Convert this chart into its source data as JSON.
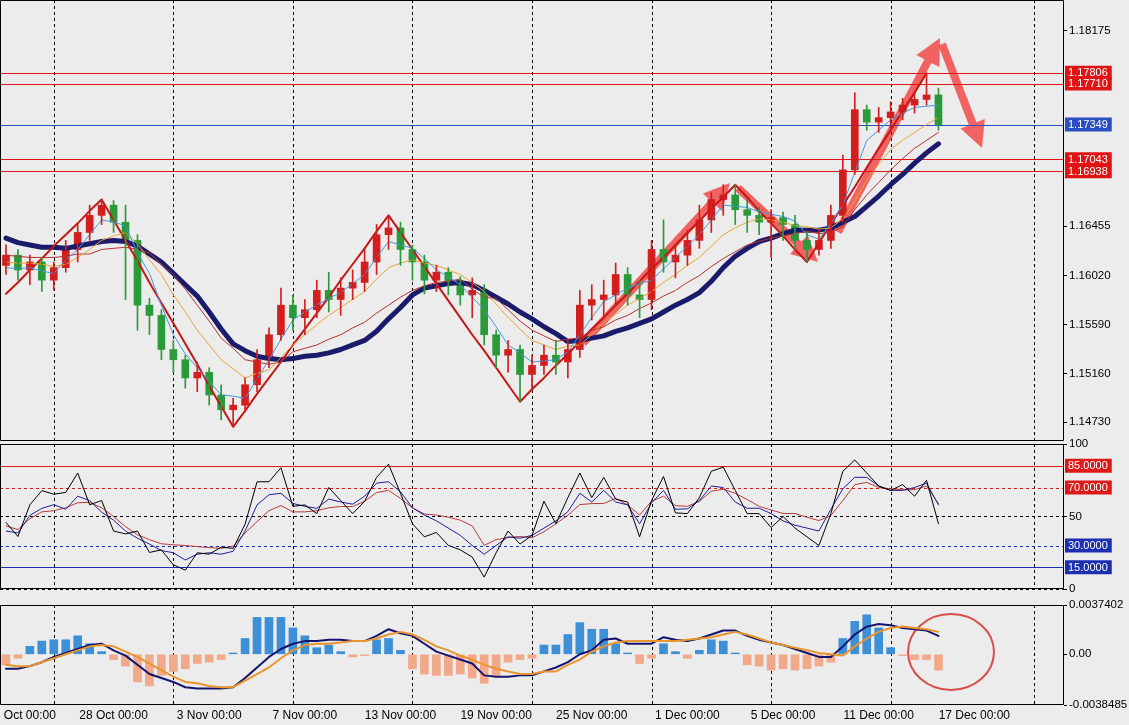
{
  "chart_data": [
    {
      "type": "candlestick",
      "ylim": [
        1.14565,
        1.18445
      ],
      "tick_labels": "y",
      "grid": "x",
      "yticks": [
        {
          "value": 1.1473,
          "label": "1.14730"
        },
        {
          "value": 1.1516,
          "label": "1.15160"
        },
        {
          "value": 1.1559,
          "label": "1.15590"
        },
        {
          "value": 1.1602,
          "label": "1.16020"
        },
        1.16455,
        1.18175
      ],
      "categories": [
        null,
        null,
        null,
        null,
        null,
        null,
        null,
        null,
        null,
        null,
        null,
        null,
        null,
        null,
        null,
        null,
        null,
        null,
        null,
        null,
        null,
        null,
        null,
        null,
        null,
        null,
        null,
        null,
        null,
        null,
        null,
        null,
        null,
        null,
        null,
        null,
        null,
        null,
        null,
        null,
        null,
        null,
        null,
        null,
        null,
        null,
        null,
        null,
        null,
        null,
        null,
        null,
        null,
        null,
        null,
        null,
        null,
        null,
        null,
        null,
        null,
        null,
        null,
        null,
        null,
        null,
        null,
        null,
        null,
        null,
        null,
        null,
        null,
        null,
        null,
        null,
        null,
        null,
        null,
        null,
        null,
        null,
        null,
        null,
        null,
        null,
        null,
        null,
        null
      ],
      "ohlc": [
        [
          1.1611,
          1.1629,
          1.1603,
          1.162
        ],
        [
          1.162,
          1.1625,
          1.1598,
          1.1607
        ],
        [
          1.1607,
          1.162,
          1.1594,
          1.1614
        ],
        [
          1.1614,
          1.1618,
          1.1588,
          1.1598
        ],
        [
          1.1598,
          1.1614,
          1.1589,
          1.1609
        ],
        [
          1.1609,
          1.1633,
          1.1605,
          1.1625
        ],
        [
          1.1625,
          1.1647,
          1.1614,
          1.164
        ],
        [
          1.164,
          1.1664,
          1.1633,
          1.1655
        ],
        [
          1.1655,
          1.1669,
          1.1647,
          1.1664
        ],
        [
          1.1664,
          1.1668,
          1.164,
          1.1649
        ],
        [
          1.1649,
          1.1664,
          1.1581,
          1.1633
        ],
        [
          1.1633,
          1.1638,
          1.1554,
          1.1576
        ],
        [
          1.1576,
          1.1582,
          1.155,
          1.1567
        ],
        [
          1.1567,
          1.1572,
          1.1528,
          1.1537
        ],
        [
          1.1537,
          1.1545,
          1.1517,
          1.1528
        ],
        [
          1.1528,
          1.1532,
          1.1503,
          1.1512
        ],
        [
          1.1512,
          1.1526,
          1.15,
          1.1517
        ],
        [
          1.1517,
          1.1521,
          1.1488,
          1.1497
        ],
        [
          1.1497,
          1.1506,
          1.1475,
          1.1484
        ],
        [
          1.1484,
          1.1494,
          1.1469,
          1.1488
        ],
        [
          1.1488,
          1.1512,
          1.1482,
          1.1506
        ],
        [
          1.1506,
          1.1537,
          1.15,
          1.1528
        ],
        [
          1.1528,
          1.1556,
          1.1521,
          1.155
        ],
        [
          1.155,
          1.1591,
          1.1545,
          1.1576
        ],
        [
          1.1576,
          1.1585,
          1.1554,
          1.1565
        ],
        [
          1.1565,
          1.1581,
          1.155,
          1.1572
        ],
        [
          1.1572,
          1.1598,
          1.1565,
          1.1589
        ],
        [
          1.1589,
          1.1605,
          1.157,
          1.1581
        ],
        [
          1.1581,
          1.16,
          1.1567,
          1.1591
        ],
        [
          1.1591,
          1.1607,
          1.1581,
          1.1596
        ],
        [
          1.1596,
          1.1625,
          1.1588,
          1.1614
        ],
        [
          1.1614,
          1.1647,
          1.1603,
          1.1638
        ],
        [
          1.1638,
          1.1655,
          1.1625,
          1.1644
        ],
        [
          1.1644,
          1.1649,
          1.1611,
          1.1625
        ],
        [
          1.1625,
          1.1629,
          1.1598,
          1.1614
        ],
        [
          1.1614,
          1.162,
          1.1586,
          1.1598
        ],
        [
          1.1598,
          1.1611,
          1.1588,
          1.1605
        ],
        [
          1.1605,
          1.1609,
          1.1585,
          1.1594
        ],
        [
          1.1594,
          1.1601,
          1.1576,
          1.1585
        ],
        [
          1.1585,
          1.16,
          1.1565,
          1.1589
        ],
        [
          1.1589,
          1.1594,
          1.1541,
          1.155
        ],
        [
          1.155,
          1.1554,
          1.1521,
          1.1532
        ],
        [
          1.1532,
          1.1545,
          1.1517,
          1.1537
        ],
        [
          1.1537,
          1.1541,
          1.1491,
          1.1515
        ],
        [
          1.1515,
          1.1532,
          1.1501,
          1.1523
        ],
        [
          1.1523,
          1.1541,
          1.1515,
          1.1532
        ],
        [
          1.1532,
          1.1545,
          1.1515,
          1.1526
        ],
        [
          1.1526,
          1.1545,
          1.1512,
          1.1537
        ],
        [
          1.1537,
          1.1589,
          1.153,
          1.1576
        ],
        [
          1.1576,
          1.1594,
          1.1563,
          1.1581
        ],
        [
          1.1581,
          1.1598,
          1.1567,
          1.1585
        ],
        [
          1.1585,
          1.1613,
          1.1576,
          1.1603
        ],
        [
          1.1603,
          1.1609,
          1.1576,
          1.1585
        ],
        [
          1.1585,
          1.1598,
          1.1565,
          1.1581
        ],
        [
          1.1581,
          1.1633,
          1.1572,
          1.1625
        ],
        [
          1.1625,
          1.1651,
          1.1605,
          1.1614
        ],
        [
          1.1614,
          1.1629,
          1.16,
          1.162
        ],
        [
          1.162,
          1.1642,
          1.1611,
          1.1633
        ],
        [
          1.1633,
          1.1664,
          1.1626,
          1.1651
        ],
        [
          1.1651,
          1.1675,
          1.164,
          1.1669
        ],
        [
          1.1669,
          1.1682,
          1.1655,
          1.1673
        ],
        [
          1.1673,
          1.1682,
          1.1647,
          1.166
        ],
        [
          1.166,
          1.1669,
          1.164,
          1.1655
        ],
        [
          1.1655,
          1.1662,
          1.1638,
          1.1649
        ],
        [
          1.1649,
          1.166,
          1.1618,
          1.1653
        ],
        [
          1.1653,
          1.1658,
          1.1633,
          1.1647
        ],
        [
          1.1647,
          1.1655,
          1.1625,
          1.1633
        ],
        [
          1.1633,
          1.164,
          1.1614,
          1.1625
        ],
        [
          1.1625,
          1.1642,
          1.162,
          1.1633
        ],
        [
          1.1633,
          1.1664,
          1.1626,
          1.1655
        ],
        [
          1.1655,
          1.1708,
          1.1649,
          1.1695
        ],
        [
          1.1695,
          1.1763,
          1.1691,
          1.1748
        ],
        [
          1.1748,
          1.1752,
          1.173,
          1.1737
        ],
        [
          1.1737,
          1.175,
          1.1728,
          1.1741
        ],
        [
          1.1741,
          1.1755,
          1.1732,
          1.1746
        ],
        [
          1.1746,
          1.1758,
          1.1739,
          1.1752
        ],
        [
          1.1752,
          1.1764,
          1.1745,
          1.1757
        ],
        [
          1.1757,
          1.178,
          1.1752,
          1.1761
        ],
        [
          1.1761,
          1.1767,
          1.173,
          1.17349
        ],
        null,
        null,
        null,
        null,
        null,
        null,
        null,
        null,
        null,
        null
      ],
      "colors": [
        "#d21e1e",
        "#2a9a3a",
        "#d21e1e",
        "#2a9a3a",
        "#d21e1e",
        "#d21e1e",
        "#d21e1e",
        "#d21e1e",
        "#d21e1e",
        "#2a9a3a",
        "#2a9a3a",
        "#2a9a3a",
        "#2a9a3a",
        "#2a9a3a",
        "#2a9a3a",
        "#2a9a3a",
        "#d21e1e",
        "#2a9a3a",
        "#2a9a3a",
        "#d21e1e",
        "#d21e1e",
        "#d21e1e",
        "#d21e1e",
        "#d21e1e",
        "#2a9a3a",
        "#d21e1e",
        "#d21e1e",
        "#2a9a3a",
        "#d21e1e",
        "#d21e1e",
        "#d21e1e",
        "#d21e1e",
        "#d21e1e",
        "#2a9a3a",
        "#2a9a3a",
        "#2a9a3a",
        "#d21e1e",
        "#2a9a3a",
        "#2a9a3a",
        "#d21e1e",
        "#2a9a3a",
        "#2a9a3a",
        "#d21e1e",
        "#2a9a3a",
        "#d21e1e",
        "#d21e1e",
        "#2a9a3a",
        "#d21e1e",
        "#d21e1e",
        "#d21e1e",
        "#d21e1e",
        "#d21e1e",
        "#2a9a3a",
        "#2a9a3a",
        "#d21e1e",
        "#2a9a3a",
        "#d21e1e",
        "#d21e1e",
        "#d21e1e",
        "#d21e1e",
        "#d21e1e",
        "#2a9a3a",
        "#2a9a3a",
        "#2a9a3a",
        "#d21e1e",
        "#2a9a3a",
        "#2a9a3a",
        "#2a9a3a",
        "#d21e1e",
        "#d21e1e",
        "#d21e1e",
        "#d21e1e",
        "#2a9a3a",
        "#d21e1e",
        "#d21e1e",
        "#d21e1e",
        "#d21e1e",
        "#d21e1e",
        "#2a9a3a",
        null,
        null,
        null,
        null,
        null,
        null,
        null,
        null,
        null,
        null
      ],
      "series": [
        {
          "type": "line",
          "color": "#3f9be0",
          "values": [
            1.1609,
            1.1608,
            1.1609,
            1.1606,
            1.1604,
            1.1616,
            1.1625,
            1.1638,
            1.1651,
            1.1649,
            1.1646,
            1.1622,
            1.1604,
            1.1576,
            1.155,
            1.1533,
            1.1521,
            1.1509,
            1.1497,
            1.1496,
            1.1494,
            1.1511,
            1.1528,
            1.1546,
            1.1563,
            1.157,
            1.1576,
            1.1582,
            1.1587,
            1.1595,
            1.1603,
            1.1618,
            1.1632,
            1.1629,
            1.1626,
            1.1617,
            1.1607,
            1.1601,
            1.1594,
            1.1583,
            1.1572,
            1.1557,
            1.1541,
            1.1534,
            1.1526,
            1.1527,
            1.1528,
            1.1535,
            1.155,
            1.1565,
            1.1579,
            1.1585,
            1.1591,
            1.1595,
            1.1598,
            1.1608,
            1.1618,
            1.1628,
            1.1638,
            1.1651,
            1.1664,
            1.1663,
            1.1662,
            1.1658,
            1.1656,
            1.1654,
            1.165,
            1.1638,
            1.1634,
            1.1648,
            1.1664,
            1.1693,
            1.1721,
            1.173,
            1.1739,
            1.1745,
            1.175,
            1.1751,
            1.1752,
            null,
            null,
            null,
            null,
            null,
            null,
            null,
            null,
            null,
            null
          ]
        },
        {
          "type": "line",
          "color": "#eda533",
          "values": [
            1.1614,
            1.1613,
            1.1613,
            1.1612,
            1.161,
            1.1612,
            1.1618,
            1.1625,
            1.1633,
            1.1637,
            1.164,
            1.163,
            1.1616,
            1.1603,
            1.1585,
            1.157,
            1.1554,
            1.1541,
            1.1528,
            1.152,
            1.1512,
            1.1516,
            1.1519,
            1.153,
            1.1541,
            1.155,
            1.1559,
            1.1567,
            1.1574,
            1.1581,
            1.1588,
            1.1599,
            1.1609,
            1.1613,
            1.1616,
            1.1613,
            1.1611,
            1.1607,
            1.1603,
            1.1596,
            1.1588,
            1.1577,
            1.1565,
            1.1555,
            1.1545,
            1.1541,
            1.1537,
            1.154,
            1.1541,
            1.155,
            1.1561,
            1.1568,
            1.1576,
            1.1582,
            1.1588,
            1.1596,
            1.1603,
            1.1611,
            1.1618,
            1.1628,
            1.1638,
            1.1644,
            1.1649,
            1.1652,
            1.1651,
            1.1649,
            1.1646,
            1.1645,
            1.1643,
            1.1644,
            1.1652,
            1.1668,
            1.1686,
            1.17,
            1.1713,
            1.1721,
            1.1728,
            1.1735,
            1.1741,
            null,
            null,
            null,
            null,
            null,
            null,
            null,
            null,
            null,
            null
          ]
        },
        {
          "type": "line",
          "color": "#b5322f",
          "values": [
            1.162,
            1.1619,
            1.1618,
            1.1618,
            1.1618,
            1.1619,
            1.1621,
            1.1621,
            1.1625,
            1.1626,
            1.1627,
            1.1625,
            1.1622,
            1.1612,
            1.1603,
            1.159,
            1.1576,
            1.1562,
            1.1547,
            1.1538,
            1.1528,
            1.1526,
            1.1524,
            1.1526,
            1.1535,
            1.1538,
            1.1541,
            1.1546,
            1.155,
            1.1556,
            1.1561,
            1.1569,
            1.1576,
            1.1583,
            1.1589,
            1.1593,
            1.1596,
            1.1597,
            1.1599,
            1.159,
            1.1583,
            1.1582,
            1.1572,
            1.1562,
            1.1554,
            1.1549,
            1.1544,
            1.1546,
            1.1547,
            1.1554,
            1.1557,
            1.1563,
            1.1567,
            1.1573,
            1.1578,
            1.1584,
            1.1589,
            1.1596,
            1.1602,
            1.161,
            1.1617,
            1.1623,
            1.1629,
            1.1632,
            1.1635,
            1.1637,
            1.1639,
            1.1641,
            1.1639,
            1.164,
            1.1645,
            1.166,
            1.1673,
            1.1684,
            1.1695,
            1.1705,
            1.1714,
            1.1721,
            1.1728,
            null,
            null,
            null,
            null,
            null,
            null,
            null,
            null,
            null,
            null
          ]
        },
        {
          "type": "line",
          "color": "#1b1b6b",
          "values": [
            1.1635,
            1.1631,
            1.1629,
            1.1627,
            1.1627,
            1.1626,
            1.1628,
            1.163,
            1.1632,
            1.1633,
            1.1632,
            1.1628,
            1.1621,
            1.1614,
            1.1604,
            1.1594,
            1.1584,
            1.157,
            1.1555,
            1.1542,
            1.1536,
            1.1531,
            1.1529,
            1.1528,
            1.1529,
            1.1531,
            1.1532,
            1.1534,
            1.1537,
            1.1541,
            1.1545,
            1.1553,
            1.1564,
            1.1574,
            1.1585,
            1.1591,
            1.1593,
            1.1595,
            1.1596,
            1.1594,
            1.1589,
            1.1583,
            1.1577,
            1.157,
            1.1564,
            1.1557,
            1.1551,
            1.1544,
            1.1545,
            1.1547,
            1.1549,
            1.1553,
            1.1556,
            1.156,
            1.1564,
            1.157,
            1.1576,
            1.1581,
            1.1587,
            1.1597,
            1.1609,
            1.1619,
            1.1626,
            1.1632,
            1.1635,
            1.1639,
            1.1642,
            1.1642,
            1.1642,
            1.1644,
            1.1649,
            1.1654,
            1.1663,
            1.1672,
            1.1682,
            1.1691,
            1.1701,
            1.171,
            1.1718,
            null,
            null,
            null,
            null,
            null,
            null,
            null,
            null,
            null,
            null
          ]
        },
        {
          "type": "line",
          "color": "#c41818",
          "values": [
            1.1586,
            1.1596,
            1.1607,
            1.1617,
            1.1628,
            1.1638,
            1.1648,
            1.1659,
            1.1669,
            1.1651,
            1.1633,
            1.1615,
            1.1596,
            1.1578,
            1.156,
            1.1542,
            1.1524,
            1.1505,
            1.1487,
            1.1469,
            1.1483,
            1.1498,
            1.1512,
            1.1526,
            1.1541,
            1.1555,
            1.1569,
            1.1583,
            1.1598,
            1.1612,
            1.1626,
            1.1641,
            1.1655,
            1.164,
            1.1625,
            1.161,
            1.1595,
            1.158,
            1.1565,
            1.155,
            1.1536,
            1.1521,
            1.1506,
            1.1491,
            1.1502,
            1.1512,
            1.1523,
            1.1533,
            1.1544,
            1.1555,
            1.1565,
            1.1576,
            1.1586,
            1.1597,
            1.1608,
            1.1618,
            1.1629,
            1.164,
            1.165,
            1.1661,
            1.1671,
            1.1682,
            1.1671,
            1.1659,
            1.1648,
            1.1637,
            1.1625,
            1.1614,
            1.1631,
            1.1647,
            1.1664,
            1.168,
            1.1697,
            1.1714,
            1.173,
            1.1747,
            1.1763,
            1.178,
            null,
            null,
            null,
            null,
            null,
            null,
            null,
            null,
            null,
            null,
            null
          ]
        }
      ],
      "ref_lines": [
        {
          "axis": "y",
          "value": 1.17806,
          "label": "1.17806",
          "color": "#e01414"
        },
        {
          "axis": "y",
          "value": 1.1771,
          "label": "1.17710",
          "color": "#e01414"
        },
        {
          "axis": "y",
          "value": 1.17349,
          "label": "1.17349",
          "color": "#2b4fc0"
        },
        {
          "axis": "y",
          "value": 1.17043,
          "label": "1.17043",
          "color": "#e01414"
        },
        {
          "axis": "y",
          "value": 1.16938,
          "label": "1.16938",
          "color": "#e01414"
        }
      ]
    },
    {
      "type": "line",
      "ylim": [
        0,
        100
      ],
      "yticks": [
        0,
        50,
        100
      ],
      "tick_labels": "y",
      "grid": true,
      "categories": [
        null,
        null,
        null,
        null,
        null,
        null,
        null,
        null,
        null,
        null,
        null,
        null,
        null,
        null,
        null,
        null,
        null,
        null,
        null,
        null,
        null,
        null,
        null,
        null,
        null,
        null,
        null,
        null,
        null,
        null,
        null,
        null,
        null,
        null,
        null,
        null,
        null,
        null,
        null,
        null,
        null,
        null,
        null,
        null,
        null,
        null,
        null,
        null,
        null,
        null,
        null,
        null,
        null,
        null,
        null,
        null,
        null,
        null,
        null,
        null,
        null,
        null,
        null,
        null,
        null,
        null,
        null,
        null,
        null,
        null,
        null,
        null,
        null,
        null,
        null,
        null,
        null,
        null,
        null,
        null,
        null,
        null,
        null,
        null,
        null,
        null,
        null,
        null,
        null
      ],
      "series": [
        {
          "color": "#b83a3a",
          "values": [
            43.5,
            41,
            48.5,
            53.2,
            54,
            56,
            59.5,
            59.7,
            56,
            50,
            43,
            37.4,
            34,
            31.2,
            30.5,
            30,
            29.2,
            28.6,
            28,
            29.5,
            38.6,
            46.5,
            54,
            57.6,
            53.2,
            53.2,
            54,
            56,
            56.9,
            56.9,
            60.5,
            66.5,
            68,
            62.5,
            56,
            51.7,
            51,
            49.5,
            47.5,
            43.5,
            30.1,
            34,
            35.5,
            36.2,
            35.3,
            39.5,
            45,
            50.9,
            58.2,
            58.9,
            59,
            62.5,
            58,
            51,
            60.6,
            64,
            57.5,
            57,
            60.5,
            67.5,
            68.7,
            66,
            61.7,
            57,
            54.5,
            52.1,
            52.1,
            49.5,
            47.2,
            50.7,
            61,
            72,
            73.5,
            70,
            69.1,
            68.4,
            68.5,
            71,
            58.8,
            null,
            null,
            null,
            null,
            null,
            null,
            null,
            null,
            null,
            null
          ]
        },
        {
          "color": "#1f1f9a",
          "values": [
            40,
            38.6,
            50.8,
            55.6,
            58.1,
            55,
            64,
            61,
            53,
            47.5,
            40,
            35,
            31,
            26.5,
            25,
            20,
            24,
            25,
            24,
            26,
            40,
            58,
            65,
            66,
            59,
            57,
            55.6,
            62,
            60,
            58.5,
            64,
            73,
            74,
            67,
            56,
            51,
            47,
            42,
            37,
            30,
            24,
            30,
            36,
            35,
            37,
            42,
            47,
            53.3,
            66,
            60,
            68,
            60,
            58,
            45,
            59.4,
            68,
            55,
            55.3,
            61,
            71,
            70,
            60,
            55.7,
            55.7,
            52,
            47,
            44,
            42,
            40,
            55,
            69.1,
            77,
            77,
            71,
            68,
            68,
            70,
            73,
            58,
            null,
            null,
            null,
            null,
            null,
            null,
            null,
            null,
            null,
            null
          ]
        },
        {
          "color": "#000000",
          "values": [
            45.9,
            36.2,
            58.1,
            67.8,
            65.4,
            66.6,
            80,
            58.1,
            61,
            40,
            38,
            40,
            25.2,
            27,
            16.7,
            13,
            25,
            24,
            28.9,
            28,
            44.7,
            73.9,
            74,
            83.6,
            57,
            58,
            52,
            70,
            61,
            52,
            60.5,
            77,
            86.1,
            66,
            45,
            36,
            39,
            30.1,
            27,
            22,
            8.2,
            25,
            40,
            31,
            37,
            60.5,
            45,
            63,
            80,
            63,
            77,
            62,
            60,
            36,
            61,
            77.6,
            52.5,
            52,
            63,
            81.2,
            84,
            68,
            52,
            52,
            42.4,
            50,
            42,
            36,
            30,
            52,
            81.2,
            89,
            80,
            71,
            68,
            72,
            64,
            75,
            45,
            null,
            null,
            null,
            null,
            null,
            null,
            null,
            null,
            null,
            null
          ]
        }
      ],
      "ref_lines": [
        {
          "axis": "y",
          "value": 85,
          "label": "85.0000",
          "color": "#dc1a1a"
        },
        {
          "axis": "y",
          "value": 70,
          "label": "70.0000",
          "color": "#dc1a1a",
          "line_style": "dashed"
        },
        {
          "axis": "y",
          "value": 30,
          "label": "30.0000",
          "color": "#1c2fb0",
          "line_style": "dashed"
        },
        {
          "axis": "y",
          "value": 15,
          "label": "15.0000",
          "color": "#1c2fb0"
        }
      ]
    },
    {
      "type": "bar",
      "ylim": [
        -0.0038485,
        0.0037402
      ],
      "yticks": [
        -0.0038485,
        {
          "value": 0,
          "label": "0.00"
        },
        0.0037402
      ],
      "grid": "x",
      "categories": [
        null,
        null,
        "Oct 00:00",
        null,
        null,
        null,
        null,
        null,
        null,
        "28 Oct 00:00",
        null,
        null,
        null,
        null,
        null,
        null,
        null,
        "3 Nov 00:00",
        null,
        null,
        null,
        null,
        null,
        null,
        null,
        "7 Nov 00:00",
        null,
        null,
        null,
        null,
        null,
        null,
        null,
        "13 Nov 00:00",
        null,
        null,
        null,
        null,
        null,
        null,
        null,
        "19 Nov 00:00",
        null,
        null,
        null,
        null,
        null,
        null,
        null,
        "25 Nov 00:00",
        null,
        null,
        null,
        null,
        null,
        null,
        null,
        "1 Dec 00:00",
        null,
        null,
        null,
        null,
        null,
        null,
        null,
        "5 Dec 00:00",
        null,
        null,
        null,
        null,
        null,
        null,
        null,
        "11 Dec 00:00",
        null,
        null,
        null,
        null,
        null,
        null,
        null,
        "17 Dec 00:00",
        null,
        null,
        null,
        null,
        null,
        null,
        null
      ],
      "series": [
        {
          "values": [
            -0.0008,
            -0.0003,
            0.0006,
            0.001,
            0.0011,
            0.0011,
            0.0014,
            0.0008,
            0.0002,
            -0.0004,
            -0.0009,
            -0.0021,
            -0.0024,
            -0.0016,
            -0.0013,
            -0.0011,
            -0.0007,
            -0.0006,
            -0.0004,
            0.0001,
            0.0012,
            0.0028,
            0.0028,
            0.0028,
            0.002,
            0.0014,
            0.0005,
            0.0007,
            0.0002,
            -0.0002,
            -0.0001,
            0.0011,
            0.0012,
            0.0003,
            -0.0011,
            -0.0015,
            -0.0016,
            -0.0016,
            -0.0015,
            -0.0018,
            -0.0022,
            -0.0016,
            -0.0006,
            -0.0004,
            -0.0003,
            0.0007,
            0.0007,
            0.0015,
            0.0024,
            0.0019,
            0.0019,
            0.0008,
            0.0001,
            -0.0007,
            -0.0003,
            0.0008,
            0.0002,
            -0.0003,
            0.0003,
            0.0011,
            0.001,
            0.0001,
            -0.0008,
            -0.0009,
            -0.0012,
            -0.0011,
            -0.0012,
            -0.0011,
            -0.0009,
            -0.0006,
            0.0012,
            0.0025,
            0.003,
            0.002,
            0.0005,
            -0.0001,
            -0.0004,
            -0.0004,
            -0.0012,
            null,
            null,
            null,
            null,
            null,
            null,
            null,
            null,
            null,
            null
          ],
          "colors": [
            "#f2a98a",
            "#f2a98a",
            "#3d8fd6",
            "#3d8fd6",
            "#3d8fd6",
            "#3d8fd6",
            "#3d8fd6",
            "#3d8fd6",
            "#3d8fd6",
            "#f2a98a",
            "#f2a98a",
            "#f2a98a",
            "#f2a98a",
            "#f2a98a",
            "#f2a98a",
            "#f2a98a",
            "#f2a98a",
            "#f2a98a",
            "#f2a98a",
            "#3d8fd6",
            "#3d8fd6",
            "#3d8fd6",
            "#3d8fd6",
            "#3d8fd6",
            "#3d8fd6",
            "#3d8fd6",
            "#3d8fd6",
            "#3d8fd6",
            "#3d8fd6",
            "#f2a98a",
            "#f2a98a",
            "#3d8fd6",
            "#3d8fd6",
            "#3d8fd6",
            "#f2a98a",
            "#f2a98a",
            "#f2a98a",
            "#f2a98a",
            "#f2a98a",
            "#f2a98a",
            "#f2a98a",
            "#f2a98a",
            "#f2a98a",
            "#f2a98a",
            "#f2a98a",
            "#3d8fd6",
            "#3d8fd6",
            "#3d8fd6",
            "#3d8fd6",
            "#3d8fd6",
            "#3d8fd6",
            "#3d8fd6",
            "#3d8fd6",
            "#f2a98a",
            "#f2a98a",
            "#3d8fd6",
            "#3d8fd6",
            "#f2a98a",
            "#3d8fd6",
            "#3d8fd6",
            "#3d8fd6",
            "#3d8fd6",
            "#f2a98a",
            "#f2a98a",
            "#f2a98a",
            "#f2a98a",
            "#f2a98a",
            "#f2a98a",
            "#f2a98a",
            "#f2a98a",
            "#3d8fd6",
            "#3d8fd6",
            "#3d8fd6",
            "#3d8fd6",
            "#3d8fd6",
            "#f2a98a",
            "#f2a98a",
            "#f2a98a",
            "#f2a98a",
            null,
            null,
            null,
            null,
            null,
            null,
            null,
            null,
            null,
            null
          ]
        },
        {
          "type": "line",
          "color": "#141470",
          "values": [
            -0.0011,
            -0.0011,
            -0.0009,
            -0.0006,
            -0.0002,
            0.0001,
            0.0004,
            0.0007,
            0.0008,
            0.0003,
            -0.0001,
            -0.0008,
            -0.0015,
            -0.0018,
            -0.0021,
            -0.0025,
            -0.0026,
            -0.0026,
            -0.0026,
            -0.0025,
            -0.0018,
            -0.001,
            -0.0002,
            0.0004,
            0.0008,
            0.001,
            0.001,
            0.0011,
            0.0011,
            0.001,
            0.001,
            0.0014,
            0.0019,
            0.0016,
            0.0014,
            0.0008,
            0.0002,
            -0.0001,
            -0.0004,
            -0.0007,
            -0.0016,
            -0.0017,
            -0.0017,
            -0.0016,
            -0.0016,
            -0.0013,
            -0.001,
            -0.0006,
            0,
            0.0003,
            0.0011,
            0.0012,
            0.0008,
            0.0008,
            0.0008,
            0.0013,
            0.0011,
            0.001,
            0.0012,
            0.0015,
            0.0018,
            0.0018,
            0.0014,
            0.0011,
            0.0009,
            0.0007,
            0.0004,
            0.0001,
            -0.0002,
            -0.0002,
            0.0006,
            0.0015,
            0.0021,
            0.0023,
            0.0022,
            0.002,
            0.0019,
            0.0018,
            0.0014,
            null,
            null,
            null,
            null,
            null,
            null,
            null,
            null,
            null,
            null
          ]
        },
        {
          "type": "line",
          "color": "#e8952e",
          "values": [
            -0.0008,
            -0.0009,
            -0.0009,
            -0.0006,
            -0.0003,
            0,
            0.0003,
            0.0006,
            0.0007,
            0.0006,
            0.0002,
            -0.0002,
            -0.0007,
            -0.0012,
            -0.0017,
            -0.0021,
            -0.0022,
            -0.0024,
            -0.0025,
            -0.0025,
            -0.002,
            -0.0015,
            -0.001,
            -0.0003,
            0.0003,
            0.0007,
            0.0008,
            0.0008,
            0.0009,
            0.001,
            0.001,
            0.0012,
            0.0015,
            0.0017,
            0.0015,
            0.0011,
            0.0006,
            0.0003,
            -0.0001,
            -0.0004,
            -0.0008,
            -0.0011,
            -0.0013,
            -0.0015,
            -0.0015,
            -0.0013,
            -0.0013,
            -0.0008,
            -0.0004,
            0.0002,
            0.0006,
            0.0009,
            0.001,
            0.001,
            0.001,
            0.001,
            0.001,
            0.0011,
            0.0012,
            0.0013,
            0.0015,
            0.0017,
            0.0015,
            0.0012,
            0.0009,
            0.0007,
            0.0005,
            0.0003,
            0.0001,
            0,
            -0.0001,
            0.0006,
            0.0012,
            0.0017,
            0.002,
            0.0021,
            0.002,
            0.0019,
            0.0017,
            null,
            null,
            null,
            null,
            null,
            null,
            null,
            null,
            null,
            null
          ]
        }
      ]
    }
  ]
}
